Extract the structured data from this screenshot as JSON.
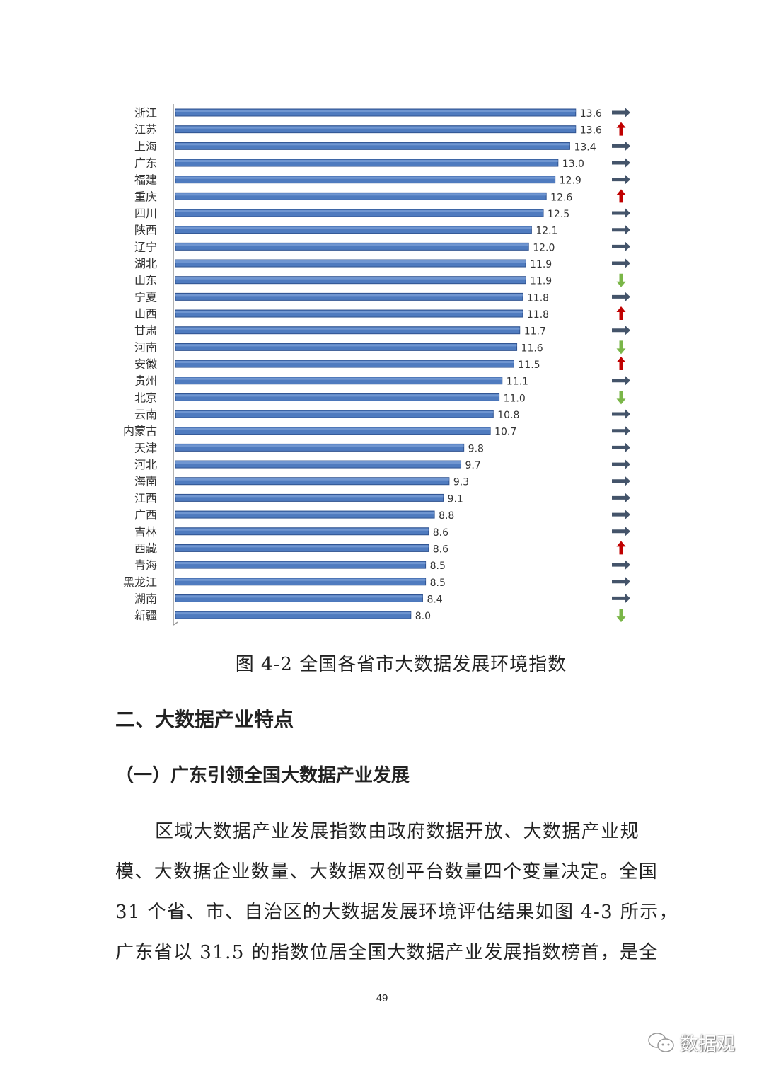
{
  "chart_data": {
    "type": "bar",
    "orientation": "horizontal",
    "categories": [
      "浙江",
      "江苏",
      "上海",
      "广东",
      "福建",
      "重庆",
      "四川",
      "陕西",
      "辽宁",
      "湖北",
      "山东",
      "宁夏",
      "山西",
      "甘肃",
      "河南",
      "安徽",
      "贵州",
      "北京",
      "云南",
      "内蒙古",
      "天津",
      "河北",
      "海南",
      "江西",
      "广西",
      "吉林",
      "西藏",
      "青海",
      "黑龙江",
      "湖南",
      "新疆"
    ],
    "values": [
      13.6,
      13.6,
      13.4,
      13.0,
      12.9,
      12.6,
      12.5,
      12.1,
      12.0,
      11.9,
      11.9,
      11.8,
      11.8,
      11.7,
      11.6,
      11.5,
      11.1,
      11.0,
      10.8,
      10.7,
      9.8,
      9.7,
      9.3,
      9.1,
      8.8,
      8.6,
      8.6,
      8.5,
      8.5,
      8.4,
      8.0
    ],
    "value_labels": [
      "13.6",
      "13.6",
      "13.4",
      "13.0",
      "12.9",
      "12.6",
      "12.5",
      "12.1",
      "12.0",
      "11.9",
      "11.9",
      "11.8",
      "11.8",
      "11.7",
      "11.6",
      "11.5",
      "11.1",
      "11.0",
      "10.8",
      "10.7",
      "9.8",
      "9.7",
      "9.3",
      "9.1",
      "8.8",
      "8.6",
      "8.6",
      "8.5",
      "8.5",
      "8.4",
      "8.0"
    ],
    "trend": [
      "right",
      "up",
      "right",
      "right",
      "right",
      "up",
      "right",
      "right",
      "right",
      "right",
      "down",
      "right",
      "up",
      "right",
      "down",
      "up",
      "right",
      "down",
      "right",
      "right",
      "right",
      "right",
      "right",
      "right",
      "right",
      "right",
      "up",
      "right",
      "right",
      "right",
      "down"
    ],
    "xlim": [
      0,
      14
    ],
    "grid": false,
    "colors": {
      "bar": "#4f7bbf",
      "bar_edge": "#2f528f",
      "flat": "#44546a",
      "up": "#c00000",
      "down": "#7ab648"
    }
  },
  "caption": "图 4-2 全国各省市大数据发展环境指数",
  "section_heading": "二、大数据产业特点",
  "subsection_heading": "（一）广东引领全国大数据产业发展",
  "paragraph_lines": [
    "区域大数据产业发展指数由政府数据开放、大数据产业规",
    "模、大数据企业数量、大数据双创平台数量四个变量决定。全国",
    "31 个省、市、自治区的大数据发展环境评估结果如图 4-3 所示，",
    "广东省以 31.5 的指数位居全国大数据产业发展指数榜首，是全"
  ],
  "page_number": "49",
  "watermark": {
    "icon": "wechat-icon",
    "text": "数据观"
  }
}
